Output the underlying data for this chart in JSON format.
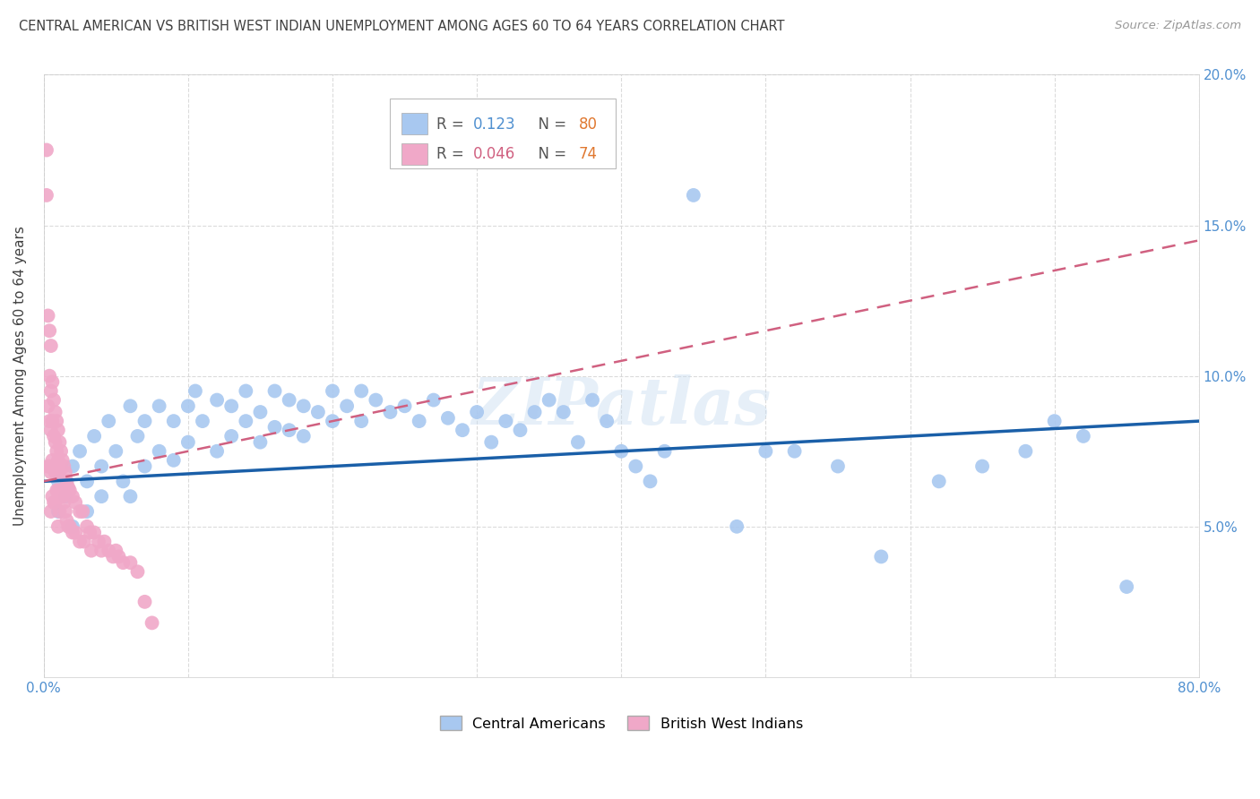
{
  "title": "CENTRAL AMERICAN VS BRITISH WEST INDIAN UNEMPLOYMENT AMONG AGES 60 TO 64 YEARS CORRELATION CHART",
  "source": "Source: ZipAtlas.com",
  "ylabel": "Unemployment Among Ages 60 to 64 years",
  "xlim": [
    0,
    0.8
  ],
  "ylim": [
    0,
    0.2
  ],
  "xticks": [
    0.0,
    0.1,
    0.2,
    0.3,
    0.4,
    0.5,
    0.6,
    0.7,
    0.8
  ],
  "xticklabels": [
    "0.0%",
    "",
    "",
    "",
    "",
    "",
    "",
    "",
    "80.0%"
  ],
  "yticks": [
    0.0,
    0.05,
    0.1,
    0.15,
    0.2
  ],
  "yticklabels": [
    "",
    "5.0%",
    "10.0%",
    "15.0%",
    "20.0%"
  ],
  "watermark": "ZIPatlas",
  "blue_color": "#a8c8f0",
  "pink_color": "#f0a8c8",
  "blue_line_color": "#1a5fa8",
  "pink_line_color": "#d06080",
  "grid_color": "#d8d8d8",
  "title_color": "#404040",
  "axis_label_color": "#404040",
  "tick_color_right": "#5090d0",
  "tick_color_x": "#5090d0",
  "blue_R": 0.123,
  "blue_N": 80,
  "pink_R": 0.046,
  "pink_N": 74,
  "blue_scatter_x": [
    0.01,
    0.01,
    0.015,
    0.02,
    0.02,
    0.025,
    0.03,
    0.03,
    0.035,
    0.04,
    0.04,
    0.045,
    0.05,
    0.055,
    0.06,
    0.06,
    0.065,
    0.07,
    0.07,
    0.08,
    0.08,
    0.09,
    0.09,
    0.1,
    0.1,
    0.105,
    0.11,
    0.12,
    0.12,
    0.13,
    0.13,
    0.14,
    0.14,
    0.15,
    0.15,
    0.16,
    0.16,
    0.17,
    0.17,
    0.18,
    0.18,
    0.19,
    0.2,
    0.2,
    0.21,
    0.22,
    0.22,
    0.23,
    0.24,
    0.25,
    0.26,
    0.27,
    0.28,
    0.29,
    0.3,
    0.31,
    0.32,
    0.33,
    0.34,
    0.35,
    0.36,
    0.37,
    0.38,
    0.39,
    0.4,
    0.41,
    0.42,
    0.43,
    0.45,
    0.48,
    0.5,
    0.52,
    0.55,
    0.58,
    0.62,
    0.65,
    0.68,
    0.7,
    0.72,
    0.75
  ],
  "blue_scatter_y": [
    0.065,
    0.055,
    0.06,
    0.07,
    0.05,
    0.075,
    0.065,
    0.055,
    0.08,
    0.07,
    0.06,
    0.085,
    0.075,
    0.065,
    0.09,
    0.06,
    0.08,
    0.085,
    0.07,
    0.09,
    0.075,
    0.085,
    0.072,
    0.09,
    0.078,
    0.095,
    0.085,
    0.092,
    0.075,
    0.09,
    0.08,
    0.095,
    0.085,
    0.088,
    0.078,
    0.095,
    0.083,
    0.092,
    0.082,
    0.09,
    0.08,
    0.088,
    0.095,
    0.085,
    0.09,
    0.095,
    0.085,
    0.092,
    0.088,
    0.09,
    0.085,
    0.092,
    0.086,
    0.082,
    0.088,
    0.078,
    0.085,
    0.082,
    0.088,
    0.092,
    0.088,
    0.078,
    0.092,
    0.085,
    0.075,
    0.07,
    0.065,
    0.075,
    0.16,
    0.05,
    0.075,
    0.075,
    0.07,
    0.04,
    0.065,
    0.07,
    0.075,
    0.085,
    0.08,
    0.03
  ],
  "pink_scatter_x": [
    0.002,
    0.002,
    0.003,
    0.003,
    0.003,
    0.004,
    0.004,
    0.004,
    0.004,
    0.005,
    0.005,
    0.005,
    0.005,
    0.005,
    0.006,
    0.006,
    0.006,
    0.006,
    0.007,
    0.007,
    0.007,
    0.007,
    0.008,
    0.008,
    0.008,
    0.008,
    0.009,
    0.009,
    0.009,
    0.01,
    0.01,
    0.01,
    0.01,
    0.011,
    0.011,
    0.011,
    0.012,
    0.012,
    0.013,
    0.013,
    0.014,
    0.014,
    0.015,
    0.015,
    0.016,
    0.016,
    0.017,
    0.017,
    0.018,
    0.018,
    0.02,
    0.02,
    0.022,
    0.022,
    0.025,
    0.025,
    0.027,
    0.028,
    0.03,
    0.032,
    0.033,
    0.035,
    0.038,
    0.04,
    0.042,
    0.045,
    0.048,
    0.05,
    0.052,
    0.055,
    0.06,
    0.065,
    0.07,
    0.075
  ],
  "pink_scatter_y": [
    0.175,
    0.16,
    0.12,
    0.09,
    0.07,
    0.115,
    0.1,
    0.085,
    0.07,
    0.11,
    0.095,
    0.082,
    0.068,
    0.055,
    0.098,
    0.085,
    0.072,
    0.06,
    0.092,
    0.08,
    0.07,
    0.058,
    0.088,
    0.078,
    0.068,
    0.058,
    0.085,
    0.075,
    0.062,
    0.082,
    0.072,
    0.062,
    0.05,
    0.078,
    0.068,
    0.055,
    0.075,
    0.062,
    0.072,
    0.06,
    0.07,
    0.058,
    0.068,
    0.055,
    0.065,
    0.052,
    0.063,
    0.05,
    0.062,
    0.05,
    0.06,
    0.048,
    0.058,
    0.048,
    0.055,
    0.045,
    0.055,
    0.045,
    0.05,
    0.048,
    0.042,
    0.048,
    0.045,
    0.042,
    0.045,
    0.042,
    0.04,
    0.042,
    0.04,
    0.038,
    0.038,
    0.035,
    0.025,
    0.018
  ],
  "blue_trend_x": [
    0.0,
    0.8
  ],
  "blue_trend_y": [
    0.065,
    0.085
  ],
  "pink_trend_x": [
    0.0,
    0.8
  ],
  "pink_trend_y": [
    0.065,
    0.145
  ]
}
